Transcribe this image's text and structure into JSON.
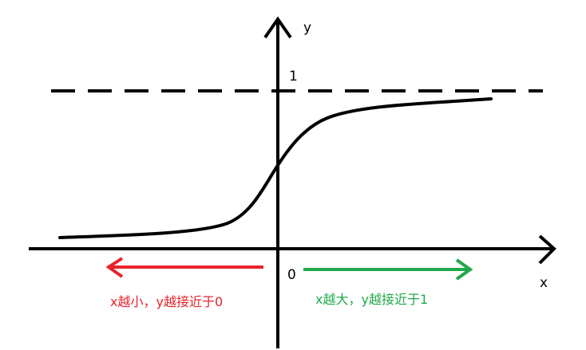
{
  "diagram": {
    "axis_labels": {
      "x": "x",
      "y": "y"
    },
    "tick_labels": {
      "origin": "0",
      "asymptote": "1"
    },
    "annotations": {
      "left": {
        "text": "x越小，y越接近于0",
        "color": "#e8232b"
      },
      "right": {
        "text": "x越大，y越接近于1",
        "color": "#20a84a"
      }
    },
    "colors": {
      "ink": "#000000",
      "background": "#ffffff"
    }
  }
}
